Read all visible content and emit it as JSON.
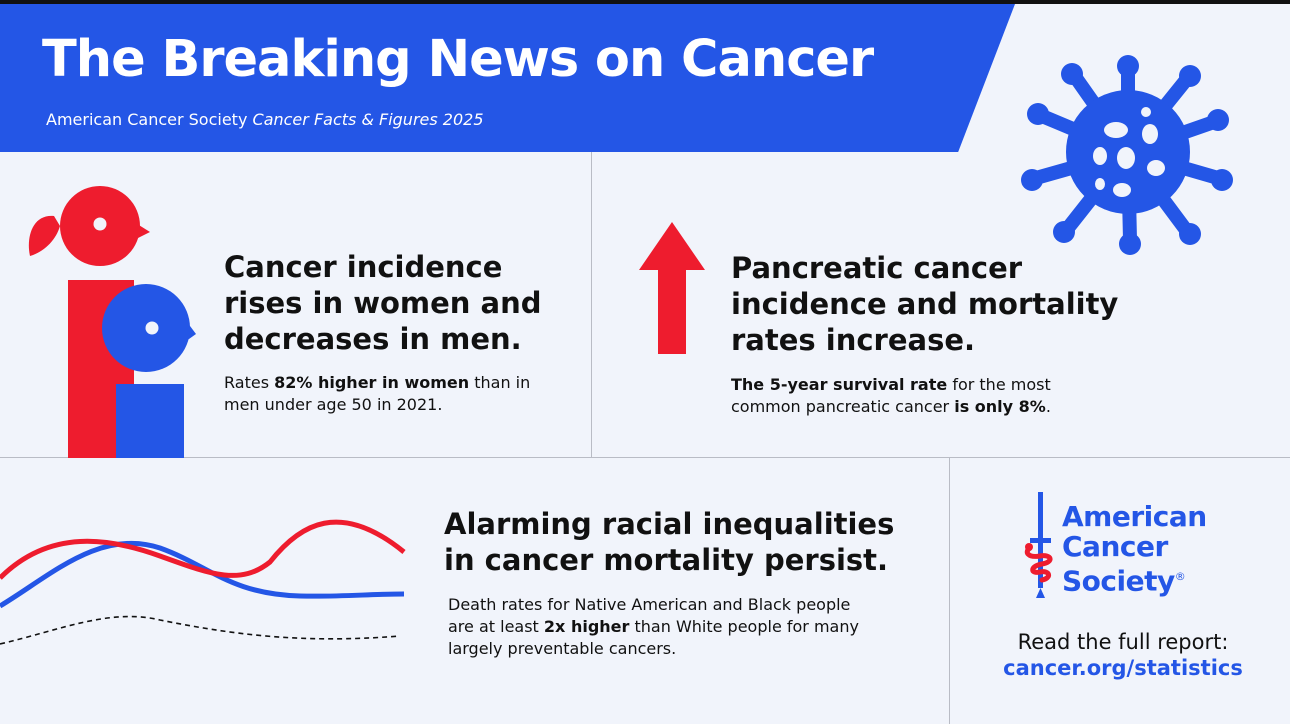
{
  "header": {
    "title": "The Breaking News on Cancer",
    "subtitle_prefix": "American Cancer Society ",
    "subtitle_italic": "Cancer Facts & Figures 2025"
  },
  "panel_incidence": {
    "headline": [
      "Cancer incidence",
      "rises in women and",
      "decreases in men."
    ],
    "body_1": "Rates ",
    "body_bold": "82% higher in women",
    "body_2": " than in",
    "body_line2": "men under age 50 in 2021.",
    "icon": "woman-man-figures-icon"
  },
  "panel_pancreatic": {
    "headline": [
      "Pancreatic cancer",
      "incidence and mortality",
      "rates increase."
    ],
    "body_bold_1": "The 5-year survival rate",
    "body_1": " for the most",
    "body_line2": "common pancreatic cancer ",
    "body_bold_2": "is only 8%",
    "body_end": ".",
    "icon": "up-arrow-icon"
  },
  "panel_racial": {
    "headline": [
      "Alarming racial inequalities",
      "in cancer mortality persist."
    ],
    "body_line1": "Death rates for Native American and Black people",
    "body_2_pre": "are at least ",
    "body_bold": "2x higher",
    "body_2_post": " than White people for many",
    "body_line3": "largely preventable cancers.",
    "icon": "wave-lines-icon"
  },
  "logo": {
    "lines": [
      "American",
      "Cancer",
      "Society"
    ],
    "registered": "®",
    "icon": "sword-caduceus-icon"
  },
  "report": {
    "label": "Read the full report:",
    "link": "cancer.org/statistics"
  },
  "colors": {
    "blue": "#2456e6",
    "red": "#ee1c2e",
    "background": "#f1f4fb"
  }
}
